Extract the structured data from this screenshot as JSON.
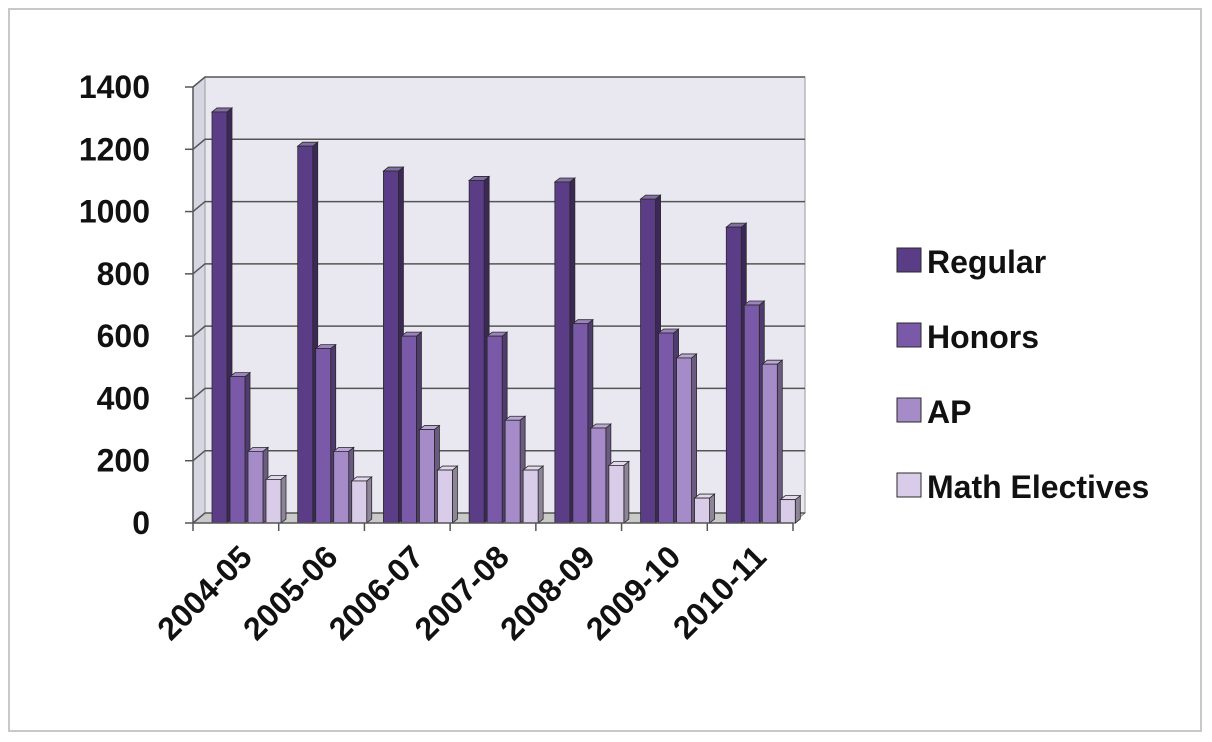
{
  "chart_data": {
    "type": "bar",
    "title": "",
    "xlabel": "",
    "ylabel": "",
    "ylim": [
      0,
      1400
    ],
    "y_ticks": [
      0,
      200,
      400,
      600,
      800,
      1000,
      1200,
      1400
    ],
    "grid": true,
    "legend_position": "right",
    "categories": [
      "2004-05",
      "2005-06",
      "2006-07",
      "2007-08",
      "2008-09",
      "2009-10",
      "2010-11"
    ],
    "series": [
      {
        "name": "Regular",
        "color": "#5a3d86",
        "values": [
          1320,
          1210,
          1130,
          1100,
          1095,
          1040,
          950
        ]
      },
      {
        "name": "Honors",
        "color": "#7a5aa8",
        "values": [
          470,
          560,
          600,
          600,
          640,
          610,
          700
        ]
      },
      {
        "name": "AP",
        "color": "#a58bc8",
        "values": [
          230,
          230,
          300,
          330,
          305,
          530,
          510
        ]
      },
      {
        "name": "Math Electives",
        "color": "#d9cce8",
        "values": [
          140,
          135,
          170,
          170,
          185,
          80,
          75
        ]
      }
    ]
  }
}
